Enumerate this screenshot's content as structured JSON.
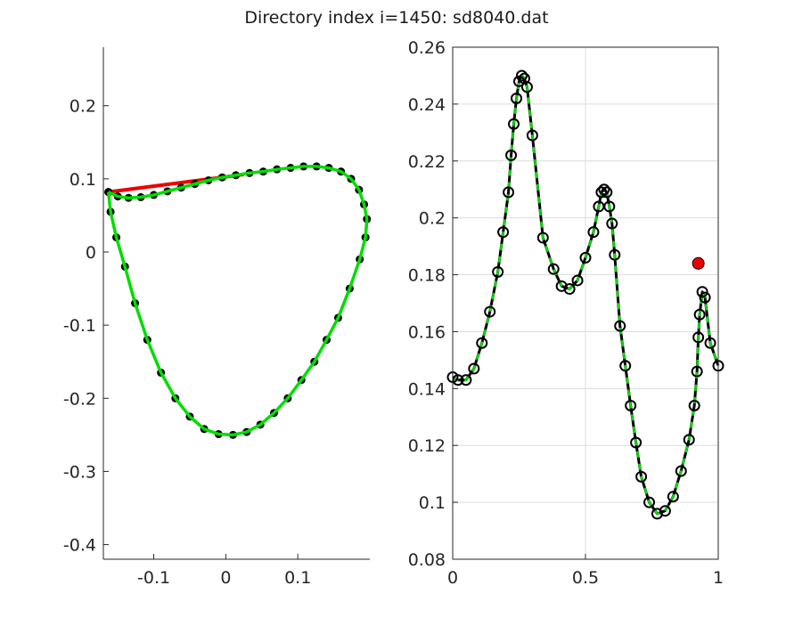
{
  "figure": {
    "title": "Directory index i=1450: sd8040.dat"
  },
  "chart_data": [
    {
      "type": "line",
      "panel": "left",
      "xlim": [
        -0.17,
        0.2
      ],
      "ylim": [
        -0.42,
        0.28
      ],
      "xticks": [
        -0.1,
        0,
        0.1
      ],
      "xtick_labels": [
        "-0.1",
        "0",
        "0.1"
      ],
      "yticks": [
        0.2,
        0.1,
        0,
        -0.1,
        -0.2,
        -0.3,
        -0.4
      ],
      "ytick_labels": [
        "0.2",
        "0.1",
        "0",
        "-0.1",
        "-0.2",
        "-0.3",
        "-0.4"
      ],
      "grid": false,
      "colors": {
        "points": "#000000",
        "curve": "#00dd00",
        "chord": "#ee0000"
      },
      "chord": {
        "x": [
          -0.163,
          0.025
        ],
        "y": [
          0.082,
          0.106
        ]
      },
      "series": [
        {
          "role": "points",
          "x": [
            -0.163,
            -0.15,
            -0.135,
            -0.118,
            -0.1,
            -0.081,
            -0.062,
            -0.043,
            -0.024,
            -0.005,
            0.014,
            0.033,
            0.052,
            0.071,
            0.09,
            0.108,
            0.126,
            0.143,
            0.16,
            0.174,
            0.185,
            0.192,
            0.196,
            0.194,
            0.186,
            0.172,
            0.156,
            0.14,
            0.123,
            0.105,
            0.086,
            0.067,
            0.048,
            0.029,
            0.01,
            -0.01,
            -0.03,
            -0.05,
            -0.07,
            -0.09,
            -0.109,
            -0.126,
            -0.14,
            -0.152,
            -0.16,
            -0.163
          ],
          "y": [
            0.082,
            0.076,
            0.074,
            0.075,
            0.078,
            0.083,
            0.088,
            0.093,
            0.098,
            0.102,
            0.105,
            0.108,
            0.11,
            0.113,
            0.115,
            0.117,
            0.117,
            0.115,
            0.11,
            0.1,
            0.085,
            0.065,
            0.045,
            0.02,
            -0.01,
            -0.05,
            -0.09,
            -0.12,
            -0.15,
            -0.175,
            -0.2,
            -0.22,
            -0.236,
            -0.246,
            -0.25,
            -0.249,
            -0.242,
            -0.225,
            -0.2,
            -0.165,
            -0.12,
            -0.07,
            -0.02,
            0.02,
            0.055,
            0.082
          ]
        },
        {
          "role": "fit",
          "x": [
            -0.163,
            -0.15,
            -0.135,
            -0.118,
            -0.1,
            -0.081,
            -0.062,
            -0.043,
            -0.024,
            -0.005,
            0.014,
            0.033,
            0.052,
            0.071,
            0.09,
            0.108,
            0.126,
            0.143,
            0.16,
            0.174,
            0.185,
            0.192,
            0.196,
            0.194,
            0.186,
            0.172,
            0.156,
            0.14,
            0.123,
            0.105,
            0.086,
            0.067,
            0.048,
            0.029,
            0.01,
            -0.01,
            -0.03,
            -0.05,
            -0.07,
            -0.09,
            -0.109,
            -0.126,
            -0.14,
            -0.152,
            -0.16,
            -0.163
          ],
          "y": [
            0.082,
            0.076,
            0.074,
            0.075,
            0.078,
            0.083,
            0.088,
            0.093,
            0.098,
            0.102,
            0.105,
            0.108,
            0.11,
            0.113,
            0.115,
            0.117,
            0.117,
            0.115,
            0.11,
            0.1,
            0.085,
            0.065,
            0.045,
            0.02,
            -0.01,
            -0.05,
            -0.09,
            -0.12,
            -0.15,
            -0.175,
            -0.2,
            -0.22,
            -0.236,
            -0.246,
            -0.25,
            -0.249,
            -0.242,
            -0.225,
            -0.2,
            -0.165,
            -0.12,
            -0.07,
            -0.02,
            0.02,
            0.055,
            0.082
          ]
        }
      ]
    },
    {
      "type": "line",
      "panel": "right",
      "xlim": [
        0,
        1
      ],
      "ylim": [
        0.08,
        0.26
      ],
      "xticks": [
        0,
        0.5,
        1
      ],
      "xtick_labels": [
        "0",
        "0.5",
        "1"
      ],
      "yticks": [
        0.26,
        0.24,
        0.22,
        0.2,
        0.18,
        0.16,
        0.14,
        0.12,
        0.1,
        0.08
      ],
      "ytick_labels": [
        "0.26",
        "0.24",
        "0.22",
        "0.2",
        "0.18",
        "0.16",
        "0.14",
        "0.12",
        "0.1",
        "0.08"
      ],
      "grid": true,
      "colors": {
        "markers": "#000000",
        "curve": "#000000",
        "dash": "#00dd00",
        "highlight": "#ee0000"
      },
      "highlight": {
        "x": 0.925,
        "y": 0.184
      },
      "series": [
        {
          "role": "markers",
          "x": [
            0.0,
            0.02,
            0.05,
            0.08,
            0.11,
            0.14,
            0.17,
            0.19,
            0.21,
            0.22,
            0.23,
            0.24,
            0.25,
            0.26,
            0.27,
            0.28,
            0.3,
            0.34,
            0.38,
            0.41,
            0.44,
            0.47,
            0.5,
            0.53,
            0.55,
            0.56,
            0.57,
            0.58,
            0.59,
            0.6,
            0.61,
            0.63,
            0.65,
            0.67,
            0.69,
            0.71,
            0.74,
            0.77,
            0.8,
            0.83,
            0.86,
            0.89,
            0.91,
            0.92,
            0.925,
            0.93,
            0.94,
            0.95,
            0.97,
            1.0
          ],
          "y": [
            0.144,
            0.143,
            0.143,
            0.147,
            0.156,
            0.167,
            0.181,
            0.195,
            0.209,
            0.222,
            0.233,
            0.242,
            0.248,
            0.25,
            0.249,
            0.246,
            0.229,
            0.193,
            0.182,
            0.176,
            0.175,
            0.178,
            0.186,
            0.195,
            0.204,
            0.209,
            0.21,
            0.209,
            0.204,
            0.198,
            0.187,
            0.162,
            0.148,
            0.134,
            0.121,
            0.109,
            0.1,
            0.096,
            0.097,
            0.102,
            0.111,
            0.122,
            0.134,
            0.146,
            0.158,
            0.166,
            0.174,
            0.172,
            0.156,
            0.148
          ]
        }
      ]
    }
  ]
}
